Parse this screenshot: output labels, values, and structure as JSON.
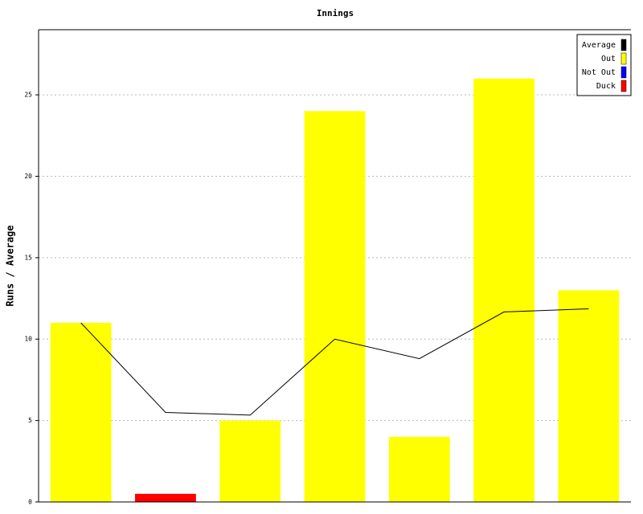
{
  "chart_data": {
    "type": "bar",
    "title": "Innings",
    "y_label": "Runs / Average",
    "categories": [
      null,
      null,
      null,
      null,
      null,
      null,
      null
    ],
    "series": [
      {
        "name": "Average",
        "type": "line",
        "color": "#000000",
        "values": [
          11,
          5.5,
          5.33,
          10,
          8.8,
          11.67,
          11.86
        ]
      },
      {
        "name": "Out",
        "type": "bar",
        "color": "#ffff00",
        "values": [
          11,
          null,
          5,
          24,
          4,
          26,
          13
        ]
      },
      {
        "name": "Not Out",
        "type": "bar",
        "color": "#0000ff",
        "values": [
          null,
          null,
          null,
          null,
          null,
          null,
          null
        ]
      },
      {
        "name": "Duck",
        "type": "bar",
        "color": "#ff0000",
        "values": [
          null,
          0.5,
          null,
          null,
          null,
          null,
          null
        ]
      }
    ],
    "ylim": [
      0,
      29
    ],
    "yticks": [
      0,
      5,
      10,
      15,
      20,
      25
    ],
    "grid": true,
    "legend": "top-right"
  }
}
